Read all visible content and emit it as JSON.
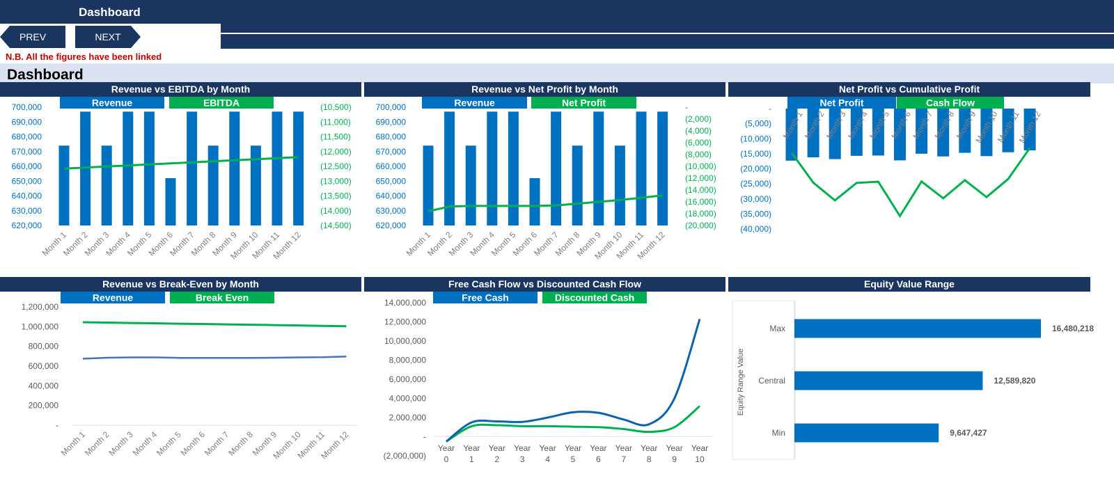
{
  "header": {
    "title": "Dashboard",
    "prev_label": "PREV",
    "next_label": "NEXT",
    "note": "N.B. All the figures have been linked",
    "dashboard_heading": "Dashboard"
  },
  "colors": {
    "navy": "#1a3560",
    "blue": "#0070c0",
    "green": "#00b050",
    "note_red": "#c00000"
  },
  "icons": {
    "prev": "arrow-left-shape",
    "next": "arrow-right-shape"
  },
  "chart_data": [
    {
      "type": "bar",
      "title": "Revenue vs EBITDA by Month",
      "legend": [
        "Revenue",
        "EBITDA"
      ],
      "categories": [
        "Month 1",
        "Month 2",
        "Month 3",
        "Month 4",
        "Month 5",
        "Month 6",
        "Month 7",
        "Month 8",
        "Month 9",
        "Month 10",
        "Month 11",
        "Month 12"
      ],
      "series": [
        {
          "name": "Revenue",
          "kind": "bar",
          "axis": "left",
          "values": [
            674000,
            697000,
            674000,
            697000,
            697000,
            652000,
            697000,
            674000,
            697000,
            674000,
            697000,
            697000
          ]
        },
        {
          "name": "EBITDA",
          "kind": "line",
          "axis": "right",
          "values": [
            -12575,
            -12540,
            -12505,
            -12470,
            -12435,
            -12400,
            -12365,
            -12330,
            -12295,
            -12260,
            -12225,
            -12190
          ]
        }
      ],
      "left_axis": {
        "ticks": [
          "700,000",
          "690,000",
          "680,000",
          "670,000",
          "660,000",
          "650,000",
          "640,000",
          "630,000",
          "620,000"
        ],
        "min": 620000,
        "max": 700000
      },
      "right_axis": {
        "ticks": [
          "(10,500)",
          "(11,000)",
          "(11,500)",
          "(12,000)",
          "(12,500)",
          "(13,000)",
          "(13,500)",
          "(14,000)",
          "(14,500)"
        ],
        "min": -14500,
        "max": -10500
      }
    },
    {
      "type": "bar",
      "title": "Revenue vs Net Profit by Month",
      "legend": [
        "Revenue",
        "Net Profit"
      ],
      "categories": [
        "Month 1",
        "Month 2",
        "Month 3",
        "Month 4",
        "Month 5",
        "Month 6",
        "Month 7",
        "Month 8",
        "Month 9",
        "Month 10",
        "Month 11",
        "Month 12"
      ],
      "series": [
        {
          "name": "Revenue",
          "kind": "bar",
          "axis": "left",
          "values": [
            674000,
            697000,
            674000,
            697000,
            697000,
            652000,
            697000,
            674000,
            697000,
            674000,
            697000,
            697000
          ]
        },
        {
          "name": "Net Profit",
          "kind": "line",
          "axis": "right",
          "values": [
            -17600,
            -16800,
            -16700,
            -16700,
            -16700,
            -16700,
            -16600,
            -16300,
            -16000,
            -15700,
            -15300,
            -14900
          ]
        }
      ],
      "left_axis": {
        "ticks": [
          "700,000",
          "690,000",
          "680,000",
          "670,000",
          "660,000",
          "650,000",
          "640,000",
          "630,000",
          "620,000"
        ],
        "min": 620000,
        "max": 700000
      },
      "right_axis": {
        "ticks": [
          "-",
          "(2,000)",
          "(4,000)",
          "(6,000)",
          "(8,000)",
          "(10,000)",
          "(12,000)",
          "(14,000)",
          "(16,000)",
          "(18,000)",
          "(20,000)"
        ],
        "min": -20000,
        "max": 0
      }
    },
    {
      "type": "bar",
      "title": "Net Profit vs Cumulative Profit",
      "legend": [
        "Net Profit",
        "Cash Flow"
      ],
      "categories": [
        "Month 1",
        "Month 2",
        "Month 3",
        "Month 4",
        "Month 5",
        "Month 6",
        "Month 7",
        "Month 8",
        "Month 9",
        "Month 10",
        "Month 11",
        "Month 12"
      ],
      "series": [
        {
          "name": "Net Profit",
          "kind": "bar",
          "values": [
            -17300,
            -16200,
            -16800,
            -15700,
            -15600,
            -17200,
            -15000,
            -15900,
            -14700,
            -15800,
            -14500,
            -13900
          ]
        },
        {
          "name": "Cash Flow",
          "kind": "line",
          "values": [
            -14700,
            -24600,
            -30500,
            -24700,
            -24300,
            -35700,
            -24200,
            -29800,
            -23800,
            -29400,
            -23400,
            -13100
          ]
        }
      ],
      "axis": {
        "ticks": [
          "-",
          "(5,000)",
          "(10,000)",
          "(15,000)",
          "(20,000)",
          "(25,000)",
          "(30,000)",
          "(35,000)",
          "(40,000)"
        ],
        "min": -40000,
        "max": 0
      }
    },
    {
      "type": "line",
      "title": "Revenue vs Break-Even by Month",
      "legend": [
        "Revenue",
        "Break Even"
      ],
      "categories": [
        "Month 1",
        "Month 2",
        "Month 3",
        "Month 4",
        "Month 5",
        "Month 6",
        "Month 7",
        "Month 8",
        "Month 9",
        "Month 10",
        "Month 11",
        "Month 12"
      ],
      "series": [
        {
          "name": "Revenue",
          "values": [
            675000,
            685000,
            688000,
            688000,
            683000,
            683000,
            683000,
            683000,
            685000,
            688000,
            690000,
            697000
          ]
        },
        {
          "name": "Break Even",
          "values": [
            1045000,
            1041000,
            1037000,
            1034000,
            1030000,
            1027000,
            1023000,
            1019000,
            1016000,
            1012000,
            1008000,
            1004000
          ]
        }
      ],
      "axis": {
        "ticks": [
          "1,200,000",
          "1,000,000",
          "800,000",
          "600,000",
          "400,000",
          "200,000",
          "-"
        ],
        "min": 0,
        "max": 1200000
      }
    },
    {
      "type": "line",
      "title": "Free Cash Flow vs Discounted Cash Flow",
      "legend": [
        "Free Cash",
        "Discounted Cash"
      ],
      "categories": [
        "Year 0",
        "Year 1",
        "Year 2",
        "Year 3",
        "Year 4",
        "Year 5",
        "Year 6",
        "Year 7",
        "Year 8",
        "Year 9",
        "Year 10"
      ],
      "series": [
        {
          "name": "Free Cash",
          "values": [
            -500000,
            1500000,
            1600000,
            1550000,
            2000000,
            2550000,
            2500000,
            1800000,
            1300000,
            4000000,
            12300000
          ]
        },
        {
          "name": "Discounted Cash",
          "values": [
            -500000,
            1100000,
            1200000,
            1100000,
            1100000,
            1050000,
            1000000,
            800000,
            500000,
            1000000,
            3200000
          ]
        }
      ],
      "axis": {
        "ticks": [
          "14,000,000",
          "12,000,000",
          "10,000,000",
          "8,000,000",
          "6,000,000",
          "4,000,000",
          "2,000,000",
          "-",
          "(2,000,000)"
        ],
        "min": -2000000,
        "max": 14000000
      }
    },
    {
      "type": "bar",
      "orientation": "horizontal",
      "title": "Equity Value Range",
      "ylabel": "Equity Range Value",
      "categories": [
        "Max",
        "Central",
        "Min"
      ],
      "values": [
        16480218,
        12589820,
        9647427
      ],
      "value_labels": [
        "16,480,218",
        "12,589,820",
        "9,647,427"
      ]
    }
  ]
}
